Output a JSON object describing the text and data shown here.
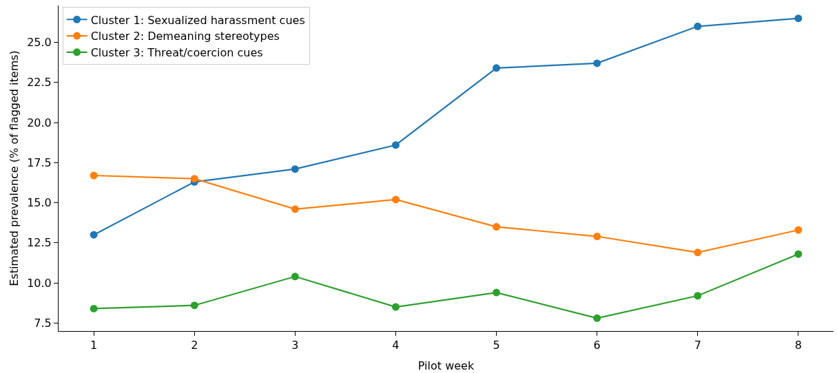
{
  "chart_data": {
    "type": "line",
    "xlabel": "Pilot week",
    "ylabel": "Estimated prevalence (% of flagged items)",
    "x": [
      1,
      2,
      3,
      4,
      5,
      6,
      7,
      8
    ],
    "series": [
      {
        "name": "Cluster 1: Sexualized harassment cues",
        "color": "#1f77b4",
        "values": [
          13.0,
          16.3,
          17.1,
          18.6,
          23.4,
          23.7,
          26.0,
          26.5
        ]
      },
      {
        "name": "Cluster 2: Demeaning stereotypes",
        "color": "#ff7f0e",
        "values": [
          16.7,
          16.5,
          14.6,
          15.2,
          13.5,
          12.9,
          11.9,
          13.3
        ]
      },
      {
        "name": "Cluster 3: Threat/coercion cues",
        "color": "#2ca02c",
        "values": [
          8.4,
          8.6,
          10.4,
          8.5,
          9.4,
          7.8,
          9.2,
          11.8
        ]
      }
    ],
    "xlim": [
      0.65,
      8.35
    ],
    "ylim": [
      7.0,
      27.3
    ],
    "xticks": [
      1,
      2,
      3,
      4,
      5,
      6,
      7,
      8
    ],
    "yticks": [
      {
        "value": 7.5,
        "label": "7.5"
      },
      {
        "value": 10,
        "label": "10.0"
      },
      {
        "value": 12.5,
        "label": "12.5"
      },
      {
        "value": 15,
        "label": "15.0"
      },
      {
        "value": 17.5,
        "label": "17.5"
      },
      {
        "value": 20,
        "label": "20.0"
      },
      {
        "value": 22.5,
        "label": "22.5"
      },
      {
        "value": 25,
        "label": "25.0"
      }
    ],
    "marker": "circle",
    "line_style": "solid",
    "legend": "top left"
  }
}
